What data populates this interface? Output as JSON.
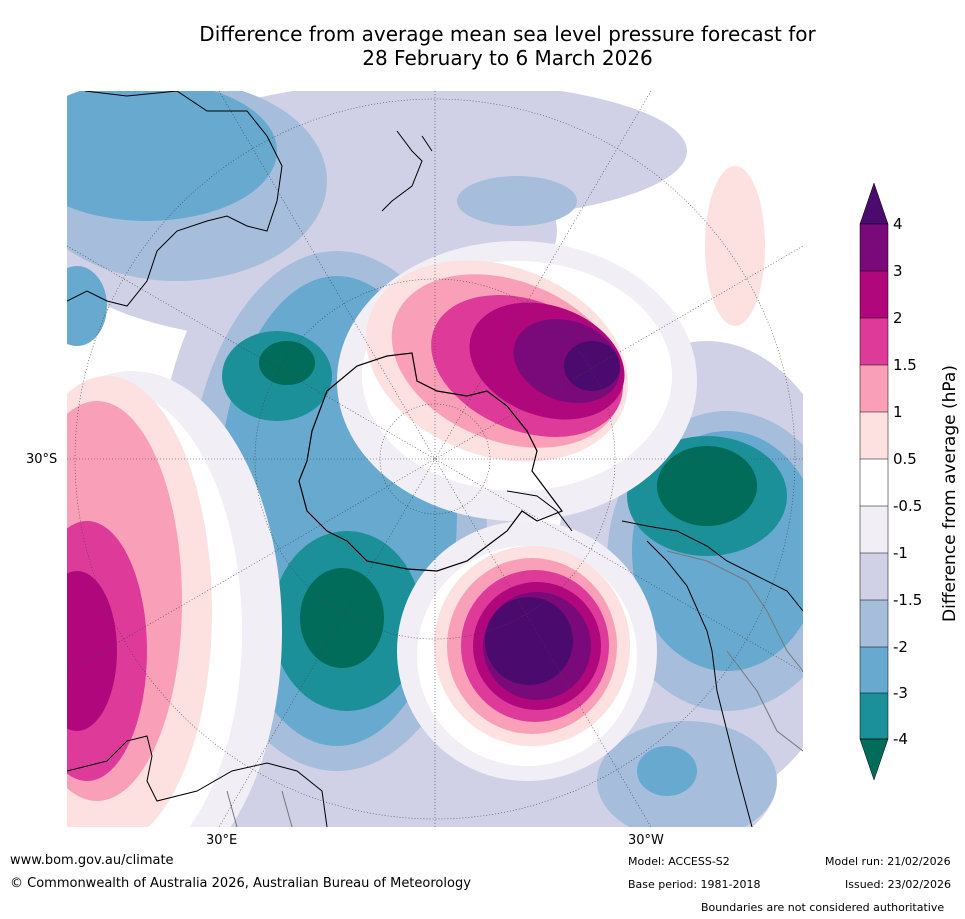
{
  "title_line1": "Difference from average mean sea level pressure forecast for",
  "title_line2": "28 February to 6 March 2026",
  "map": {
    "lat_label": "30°S",
    "lon_label_left": "30°E",
    "lon_label_right": "30°W"
  },
  "colorbar": {
    "title": "Difference from average (hPa)",
    "ticks": [
      "4",
      "3",
      "2",
      "1.5",
      "1",
      "0.5",
      "-0.5",
      "-1",
      "-1.5",
      "-2",
      "-3",
      "-4"
    ],
    "colors": {
      "above_4": "#4a0a6e",
      "3_to_4": "#7a0a7a",
      "2_to_3": "#b0087c",
      "1.5_to_2": "#dd3a9a",
      "1_to_1.5": "#f9a0b8",
      "0.5_to_1": "#fde0e0",
      "-0.5_to_0.5": "#ffffff",
      "-1_to_-0.5": "#f1eef6",
      "-1.5_to_-1": "#d0d1e6",
      "-2_to_-1.5": "#a6bddb",
      "-3_to_-2": "#67a9cf",
      "-4_to_-3": "#1c9099",
      "below_-4": "#016c59"
    }
  },
  "footer": {
    "website": "www.bom.gov.au/climate",
    "copyright": "© Commonwealth of Australia 2026, Australian Bureau of Meteorology",
    "model": "Model: ACCESS-S2",
    "base_period": "Base period: 1981-2018",
    "model_run": "Model run: 21/02/2026",
    "issued": "Issued: 23/02/2026",
    "boundaries": "Boundaries are not considered authoritative"
  }
}
